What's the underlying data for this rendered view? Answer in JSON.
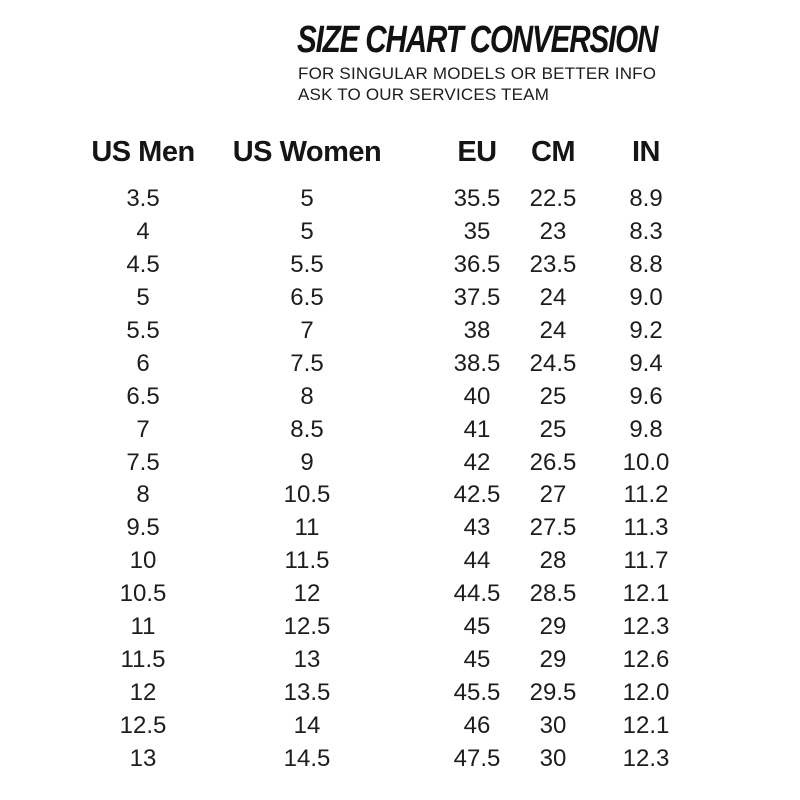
{
  "header": {
    "title": "SIZE CHART CONVERSION",
    "subtitle_line1": "FOR SINGULAR MODELS OR BETTER INFO",
    "subtitle_line2": "ASK TO OUR SERVICES TEAM"
  },
  "colors": {
    "background": "#ffffff",
    "text": "#1a1a1a"
  },
  "chart_data": {
    "type": "table",
    "title": "SIZE CHART CONVERSION",
    "columns": [
      "US Men",
      "US Women",
      "EU",
      "CM",
      "IN"
    ],
    "rows": [
      [
        "3.5",
        "5",
        "35.5",
        "22.5",
        "8.9"
      ],
      [
        "4",
        "5",
        "35",
        "23",
        "8.3"
      ],
      [
        "4.5",
        "5.5",
        "36.5",
        "23.5",
        "8.8"
      ],
      [
        "5",
        "6.5",
        "37.5",
        "24",
        "9.0"
      ],
      [
        "5.5",
        "7",
        "38",
        "24",
        "9.2"
      ],
      [
        "6",
        "7.5",
        "38.5",
        "24.5",
        "9.4"
      ],
      [
        "6.5",
        "8",
        "40",
        "25",
        "9.6"
      ],
      [
        "7",
        "8.5",
        "41",
        "25",
        "9.8"
      ],
      [
        "7.5",
        "9",
        "42",
        "26.5",
        "10.0"
      ],
      [
        "8",
        "10.5",
        "42.5",
        "27",
        "11.2"
      ],
      [
        "9.5",
        "11",
        "43",
        "27.5",
        "11.3"
      ],
      [
        "10",
        "11.5",
        "44",
        "28",
        "11.7"
      ],
      [
        "10.5",
        "12",
        "44.5",
        "28.5",
        "12.1"
      ],
      [
        "11",
        "12.5",
        "45",
        "29",
        "12.3"
      ],
      [
        "11.5",
        "13",
        "45",
        "29",
        "12.6"
      ],
      [
        "12",
        "13.5",
        "45.5",
        "29.5",
        "12.0"
      ],
      [
        "12.5",
        "14",
        "46",
        "30",
        "12.1"
      ],
      [
        "13",
        "14.5",
        "47.5",
        "30",
        "12.3"
      ]
    ]
  }
}
